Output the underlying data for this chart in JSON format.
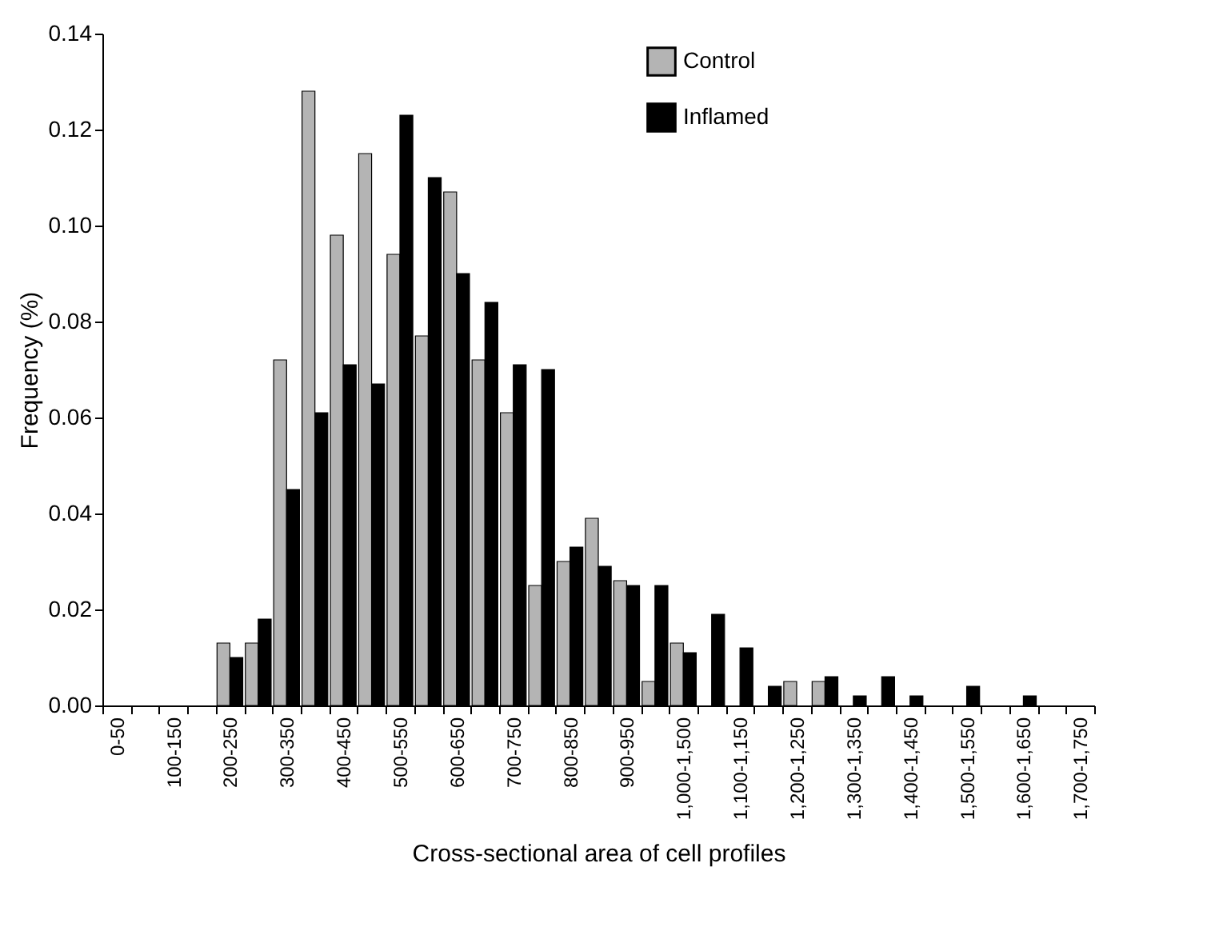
{
  "chart_data": {
    "type": "bar",
    "xlabel": "Cross-sectional area of cell profiles",
    "ylabel": "Frequency (%)",
    "categories": [
      "0-50",
      null,
      "100-150",
      null,
      "200-250",
      null,
      "300-350",
      null,
      "400-450",
      null,
      "500-550",
      null,
      "600-650",
      null,
      "700-750",
      null,
      "800-850",
      null,
      "900-950",
      null,
      "1,000-1,500",
      null,
      "1,100-1,150",
      null,
      "1,200-1,250",
      null,
      "1,300-1,350",
      null,
      "1,400-1,450",
      null,
      "1,500-1,550",
      null,
      "1,600-1,650",
      null,
      "1,700-1,750"
    ],
    "series": [
      {
        "name": "Control",
        "color": "#b4b4b4",
        "values": [
          null,
          null,
          null,
          null,
          0.013,
          0.013,
          0.072,
          0.128,
          0.098,
          0.115,
          0.094,
          0.077,
          0.107,
          0.072,
          0.061,
          0.025,
          0.03,
          0.039,
          0.026,
          0.005,
          0.013,
          null,
          null,
          null,
          0.005,
          0.005,
          null,
          null,
          null,
          null,
          null,
          null,
          null,
          null,
          null
        ]
      },
      {
        "name": "Inflamed",
        "color": "#000000",
        "values": [
          null,
          null,
          null,
          null,
          0.01,
          0.018,
          0.045,
          0.061,
          0.071,
          0.067,
          0.123,
          0.11,
          0.09,
          0.084,
          0.071,
          0.07,
          0.033,
          0.029,
          0.025,
          0.025,
          0.011,
          0.019,
          0.012,
          0.004,
          null,
          0.006,
          0.002,
          0.006,
          0.002,
          null,
          0.004,
          null,
          0.002,
          null,
          null
        ]
      }
    ],
    "ylim": [
      0,
      0.14
    ],
    "yticks": [
      {
        "value": 0,
        "label": "0.00"
      },
      {
        "value": 0.02,
        "label": "0.02"
      },
      {
        "value": 0.04,
        "label": "0.04"
      },
      {
        "value": 0.06,
        "label": "0.06"
      },
      {
        "value": 0.08,
        "label": "0.08"
      },
      {
        "value": 0.1,
        "label": "0.10"
      },
      {
        "value": 0.12,
        "label": "0.12"
      },
      {
        "value": 0.14,
        "label": "0.14"
      }
    ],
    "grid": false,
    "legend": "top right"
  }
}
